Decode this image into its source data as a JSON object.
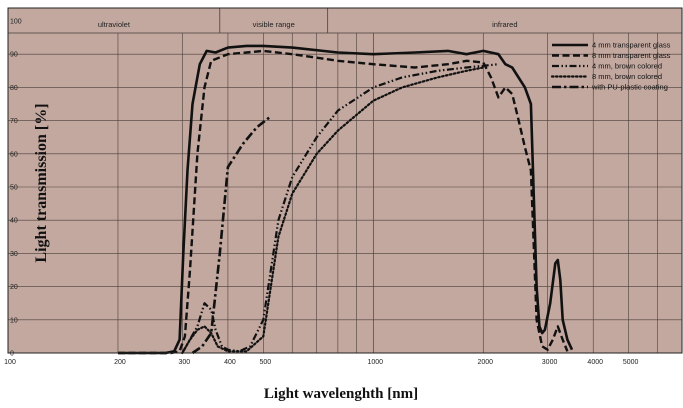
{
  "chart_data": {
    "type": "line",
    "xlabel": "Light wavelenghth [nm]",
    "ylabel": "Light transmission [%]",
    "x_scale": "log",
    "xlim": [
      100,
      7000
    ],
    "ylim": [
      0,
      100
    ],
    "x_ticks": [
      100,
      200,
      300,
      400,
      500,
      1000,
      2000,
      3000,
      4000,
      5000
    ],
    "y_ticks": [
      0,
      10,
      20,
      30,
      40,
      50,
      60,
      70,
      80,
      90,
      100
    ],
    "bands": [
      {
        "label": "ultraviolet",
        "from": 100,
        "to": 380
      },
      {
        "label": "visible range",
        "from": 380,
        "to": 750
      },
      {
        "label": "infrared",
        "from": 750,
        "to": 7000
      }
    ],
    "grid": true,
    "legend_position": "top-right",
    "colors": {
      "background": "#c2a89f",
      "grid": "#4a3f3a",
      "line": "#111111"
    },
    "series": [
      {
        "name": "4 mm transparent glass",
        "dash": "solid",
        "x": [
          200,
          270,
          285,
          295,
          302,
          310,
          320,
          335,
          350,
          370,
          400,
          450,
          500,
          600,
          800,
          1000,
          1300,
          1600,
          1800,
          2000,
          2200,
          2300,
          2400,
          2600,
          2700,
          2800,
          2850,
          2900,
          2950,
          3050,
          3150,
          3200,
          3250,
          3300,
          3400,
          3500
        ],
        "y": [
          0,
          0,
          0.5,
          4,
          30,
          55,
          75,
          87,
          91,
          90.5,
          92,
          92.5,
          92.5,
          92,
          90.5,
          90,
          90.5,
          91,
          90,
          91,
          90,
          87,
          86,
          80,
          75,
          20,
          8,
          6,
          7,
          15,
          27,
          28,
          22,
          10,
          4,
          1
        ]
      },
      {
        "name": "8 mm transparent glass",
        "dash": "dashed",
        "x": [
          200,
          280,
          295,
          305,
          315,
          330,
          345,
          360,
          400,
          450,
          500,
          600,
          800,
          1000,
          1300,
          1600,
          1800,
          2000,
          2100,
          2200,
          2300,
          2400,
          2500,
          2600,
          2700,
          2800,
          2900,
          3000,
          3100,
          3200,
          3300,
          3400
        ],
        "y": [
          0,
          0,
          0.5,
          5,
          25,
          60,
          80,
          88,
          90,
          90.5,
          91,
          90,
          88,
          87,
          86,
          87,
          88,
          87.5,
          83,
          77,
          80,
          78,
          70,
          62,
          55,
          10,
          2,
          1,
          4,
          8,
          4,
          0.5
        ]
      },
      {
        "name": "4 mm, brown colored",
        "dash": "dash-dot-dot",
        "x": [
          300,
          330,
          345,
          360,
          370,
          385,
          400,
          430,
          460,
          500,
          550,
          600,
          700,
          800,
          1000,
          1200,
          1500,
          1800,
          2000,
          2200
        ],
        "y": [
          0,
          8,
          15,
          13,
          7,
          2,
          1,
          0.5,
          2,
          10,
          40,
          53,
          65,
          73,
          80,
          83,
          85,
          86,
          86.5,
          87
        ]
      },
      {
        "name": "8 mm, brown colored",
        "dash": "dotted",
        "x": [
          300,
          315,
          330,
          345,
          360,
          375,
          400,
          450,
          500,
          550,
          600,
          700,
          800,
          1000,
          1200,
          1500,
          1800,
          2000
        ],
        "y": [
          0,
          4,
          7,
          8,
          6,
          2,
          0.5,
          0.5,
          5,
          35,
          48,
          60,
          67,
          76,
          80,
          83,
          85,
          86
        ]
      },
      {
        "name": "with PU-plastic coating",
        "dash": "dash-dot",
        "x": [
          320,
          340,
          360,
          380,
          400,
          440,
          480,
          520
        ],
        "y": [
          0,
          2,
          6,
          30,
          56,
          63,
          68,
          71
        ]
      }
    ]
  }
}
